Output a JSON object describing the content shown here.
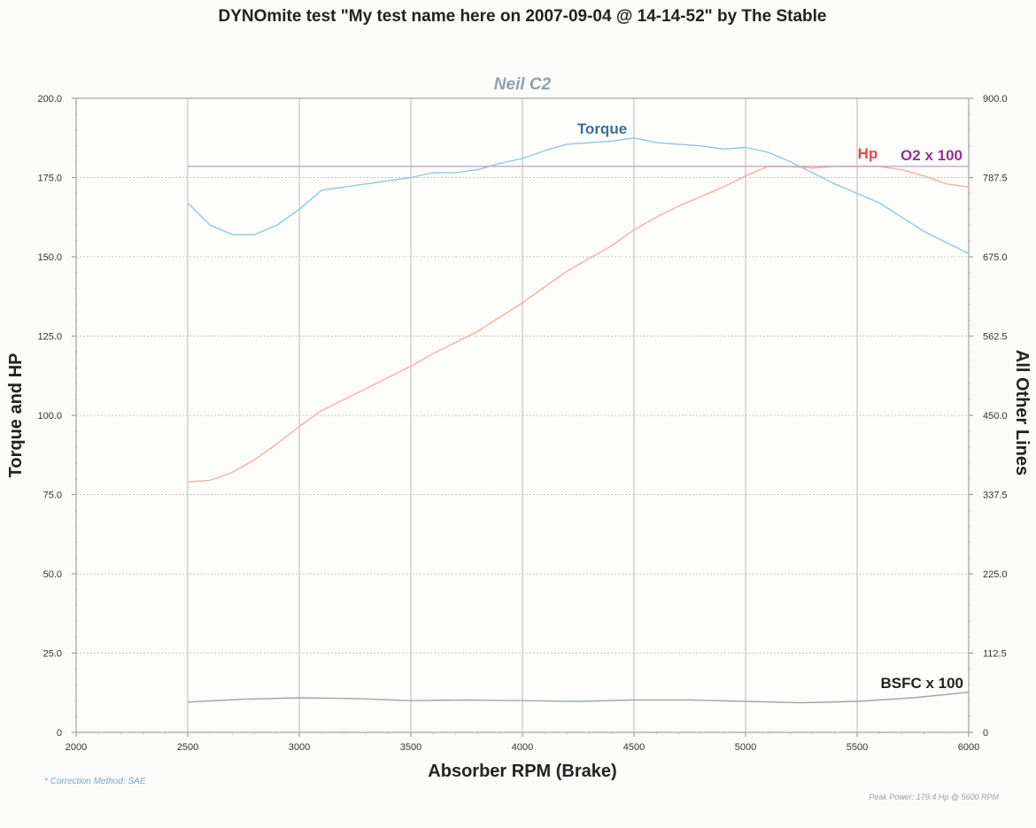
{
  "chart_data": {
    "type": "line",
    "title": "DYNOmite test \"My test name here on 2007-09-04 @ 14-14-52\" by The Stable",
    "subtitle": "Neil C2",
    "xlabel": "Absorber RPM (Brake)",
    "ylabel_left": "Torque and HP",
    "ylabel_right": "All Other Lines",
    "xlim": [
      2000,
      6000
    ],
    "ylim_left": [
      0,
      200
    ],
    "ylim_right": [
      0,
      900
    ],
    "x_ticks": [
      "2000",
      "2500",
      "3000",
      "3500",
      "4000",
      "4500",
      "5000",
      "5500",
      "6000"
    ],
    "y_ticks_left": [
      "0",
      "25.0",
      "50.0",
      "75.0",
      "100.0",
      "125.0",
      "150.0",
      "175.0",
      "200.0"
    ],
    "y_ticks_right": [
      "0",
      "112.5",
      "225.0",
      "337.5",
      "450.0",
      "562.5",
      "675.0",
      "787.5",
      "900.0"
    ],
    "grid": true,
    "series": [
      {
        "name": "Torque",
        "axis": "left",
        "color": "#8ec8de",
        "label_color": "#3b6e98",
        "x": [
          2500,
          2600,
          2700,
          2800,
          2900,
          3000,
          3100,
          3200,
          3300,
          3400,
          3500,
          3600,
          3700,
          3800,
          3900,
          4000,
          4100,
          4200,
          4300,
          4400,
          4500,
          4600,
          4700,
          4800,
          4900,
          5000,
          5100,
          5200,
          5300,
          5400,
          5500,
          5600,
          5700,
          5800,
          5900,
          6000
        ],
        "y": [
          167,
          160,
          157,
          157,
          160,
          165,
          171,
          172,
          173,
          174,
          175,
          176.5,
          176.5,
          177.5,
          179.5,
          181,
          183.5,
          185.5,
          186,
          186.5,
          187.5,
          186,
          185.5,
          185,
          184,
          184.5,
          183,
          180,
          176.5,
          173,
          170,
          167,
          162.5,
          158,
          154.5,
          151
        ]
      },
      {
        "name": "Hp",
        "axis": "left",
        "color": "#f3b0a2",
        "label_color": "#e04a4a",
        "x": [
          2500,
          2600,
          2700,
          2800,
          2900,
          3000,
          3100,
          3200,
          3300,
          3400,
          3500,
          3600,
          3700,
          3800,
          3900,
          4000,
          4100,
          4200,
          4300,
          4400,
          4500,
          4600,
          4700,
          4800,
          4900,
          5000,
          5100,
          5200,
          5300,
          5400,
          5500,
          5600,
          5700,
          5800,
          5900,
          6000
        ],
        "y": [
          79,
          79.5,
          82,
          86,
          91,
          96.5,
          101.5,
          105,
          108.5,
          112,
          115.5,
          119.5,
          123,
          126.5,
          131,
          135.5,
          140.5,
          145.5,
          149.5,
          153.5,
          158.5,
          162.5,
          166,
          169,
          172,
          175.5,
          178.5,
          178.5,
          178,
          178.5,
          178.5,
          178.5,
          177.5,
          175.5,
          173,
          172
        ]
      },
      {
        "name": "O2 x 100",
        "axis": "right",
        "color": "#c9a3cf",
        "label_color": "#9b2f9e",
        "x": [
          2500,
          3000,
          3500,
          4000,
          4500,
          5000,
          5500,
          6000
        ],
        "y": [
          803.5,
          803.5,
          803.5,
          803.5,
          803.5,
          803.5,
          803.5,
          803.5
        ]
      },
      {
        "name": "BSFC x 100",
        "axis": "right",
        "color": "#9aa8a8",
        "label_color": "#222222",
        "x": [
          2500,
          2750,
          3000,
          3250,
          3500,
          3750,
          4000,
          4250,
          4500,
          4750,
          5000,
          5250,
          5500,
          5750,
          6000
        ],
        "y": [
          43,
          47,
          49,
          48,
          45,
          46,
          45,
          44,
          46,
          46,
          44,
          42,
          44,
          49,
          57
        ]
      }
    ],
    "footnote_left": "* Correction Method: SAE",
    "footnote_right": "Peak Power: 179.4 Hp @ 5600 RPM"
  }
}
